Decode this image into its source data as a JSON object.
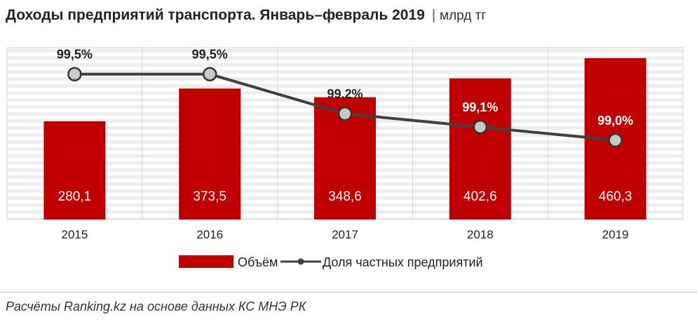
{
  "header": {
    "title": "Доходы предприятий транспорта. Январь–февраль 2019",
    "separator": "|",
    "unit": "млрд тг"
  },
  "chart_data": {
    "type": "bar",
    "categories": [
      "2015",
      "2016",
      "2017",
      "2018",
      "2019"
    ],
    "series": [
      {
        "name": "Объём",
        "kind": "bar",
        "color": "#c00000",
        "values": [
          280.1,
          373.5,
          348.6,
          402.6,
          460.3
        ],
        "labels": [
          "280,1",
          "373,5",
          "348,6",
          "402,6",
          "460,3"
        ]
      },
      {
        "name": "Доля частных предприятий",
        "kind": "line",
        "color": "#404040",
        "unit": "%",
        "values": [
          99.5,
          99.5,
          99.2,
          99.1,
          99.0
        ],
        "labels": [
          "99,5%",
          "99,5%",
          "99,2%",
          "99,1%",
          "99,0%"
        ]
      }
    ],
    "ylim_bars": [
      0,
      490
    ],
    "ylim_line": [
      98.4,
      99.7
    ],
    "grid": true,
    "legend_position": "bottom"
  },
  "footer": {
    "source": "Расчёты Ranking.kz на основе данных КС МНЭ РК"
  }
}
